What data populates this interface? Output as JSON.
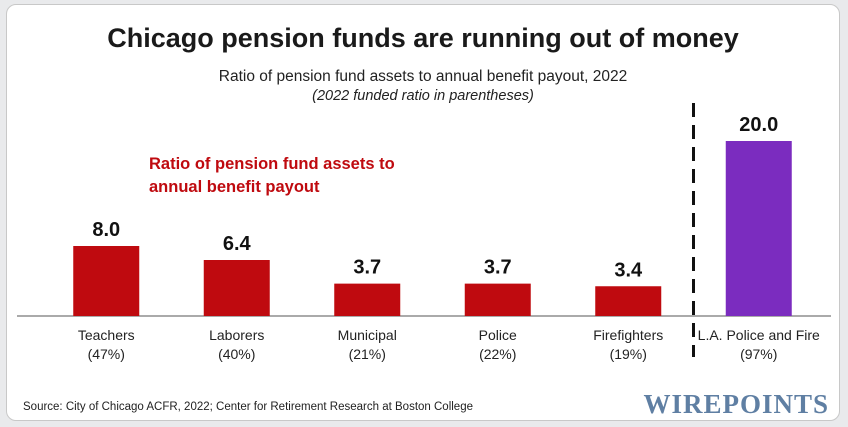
{
  "chart_data": {
    "type": "bar",
    "title": "Chicago pension funds are running out of money",
    "subtitle": "Ratio of pension fund assets to annual benefit payout, 2022",
    "subtitle2": "(2022 funded ratio in parentheses)",
    "annotation": [
      "Ratio of pension fund assets to",
      "annual benefit payout"
    ],
    "categories": [
      "Teachers",
      "Laborers",
      "Municipal",
      "Police",
      "Firefighters",
      "L.A. Police and Fire"
    ],
    "funded_ratios": [
      "(47%)",
      "(40%)",
      "(21%)",
      "(22%)",
      "(19%)",
      "(97%)"
    ],
    "values": [
      8.0,
      6.4,
      3.7,
      3.7,
      3.4,
      20.0
    ],
    "value_labels": [
      "8.0",
      "6.4",
      "3.7",
      "3.7",
      "3.4",
      "20.0"
    ],
    "bar_colors": [
      "#bf0a0f",
      "#bf0a0f",
      "#bf0a0f",
      "#bf0a0f",
      "#bf0a0f",
      "#7b2cbf"
    ],
    "divider": "dashed vertical line between Firefighters and L.A. Police and Fire",
    "xlabel": "",
    "ylabel": "",
    "ylim": [
      0,
      20
    ],
    "grid": false
  },
  "source": "Source: City of Chicago ACFR, 2022;  Center for Retirement Research at Boston College",
  "brand": "WIREPOINTS",
  "colors": {
    "red": "#bf0a0f",
    "purple": "#7b2cbf",
    "brand": "#5f7fa3",
    "axis": "#555555"
  }
}
